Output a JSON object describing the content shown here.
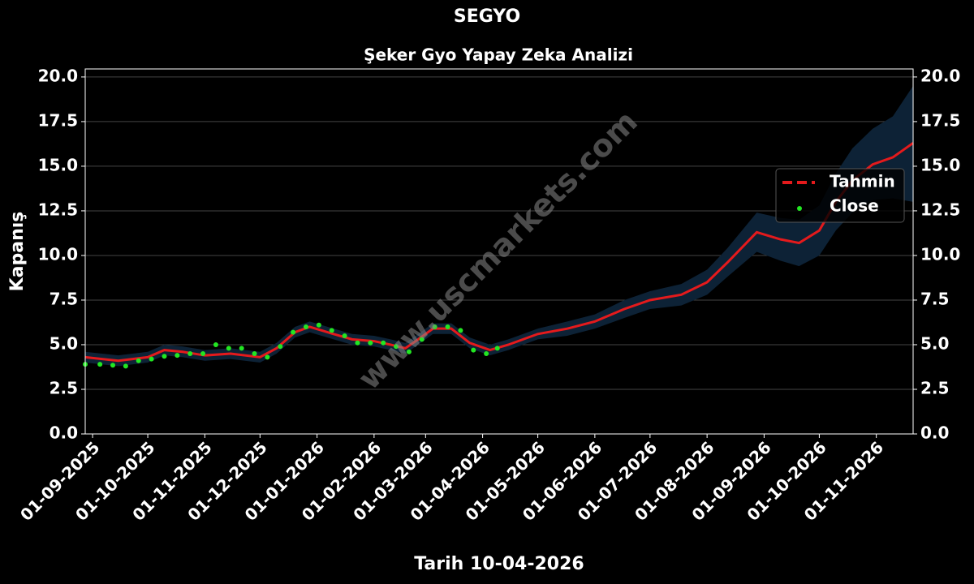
{
  "chart_data": {
    "type": "line",
    "title": "SEGYO",
    "subtitle": "Şeker Gyo Yapay Zeka Analizi",
    "y_label": "Kapanış",
    "x_label": "Tarih 10-04-2026",
    "watermark": "www.uscmarkets.com",
    "xlim": [
      "2025-08-28",
      "2026-11-21"
    ],
    "ylim": [
      0,
      20.45
    ],
    "yticks": [
      {
        "value": 0,
        "label": "0.0"
      },
      {
        "value": 2.5,
        "label": "2.5"
      },
      {
        "value": 5,
        "label": "5.0"
      },
      {
        "value": 7.5,
        "label": "7.5"
      },
      {
        "value": 10,
        "label": "10.0"
      },
      {
        "value": 12.5,
        "label": "12.5"
      },
      {
        "value": 15,
        "label": "15.0"
      },
      {
        "value": 17.5,
        "label": "17.5"
      },
      {
        "value": 20,
        "label": "20.0"
      }
    ],
    "xticks": [
      {
        "value": "2025-09-01",
        "label": "01-09-2025"
      },
      {
        "value": "2025-10-01",
        "label": "01-10-2025"
      },
      {
        "value": "2025-11-01",
        "label": "01-11-2025"
      },
      {
        "value": "2025-12-01",
        "label": "01-12-2025"
      },
      {
        "value": "2026-01-01",
        "label": "01-01-2026"
      },
      {
        "value": "2026-02-01",
        "label": "01-02-2026"
      },
      {
        "value": "2026-03-01",
        "label": "01-03-2026"
      },
      {
        "value": "2026-04-01",
        "label": "01-04-2026"
      },
      {
        "value": "2026-05-01",
        "label": "01-05-2026"
      },
      {
        "value": "2026-06-01",
        "label": "01-06-2026"
      },
      {
        "value": "2026-07-01",
        "label": "01-07-2026"
      },
      {
        "value": "2026-08-01",
        "label": "01-08-2026"
      },
      {
        "value": "2026-09-01",
        "label": "01-09-2026"
      },
      {
        "value": "2026-10-01",
        "label": "01-10-2026"
      },
      {
        "value": "2026-11-01",
        "label": "01-11-2026"
      }
    ],
    "grid": true,
    "legend": "right",
    "series": [
      {
        "name": "Tahmin",
        "color": "#e41a1c",
        "band_color": "#0d2236",
        "x": [
          "2025-08-28",
          "2025-09-15",
          "2025-10-01",
          "2025-10-10",
          "2025-10-20",
          "2025-11-01",
          "2025-11-15",
          "2025-12-01",
          "2025-12-10",
          "2025-12-20",
          "2025-12-28",
          "2026-01-10",
          "2026-01-20",
          "2026-02-01",
          "2026-02-10",
          "2026-02-18",
          "2026-02-25",
          "2026-03-05",
          "2026-03-15",
          "2026-03-25",
          "2026-04-05",
          "2026-04-15",
          "2026-05-01",
          "2026-05-17",
          "2026-06-01",
          "2026-06-17",
          "2026-07-01",
          "2026-07-18",
          "2026-08-01",
          "2026-08-12",
          "2026-08-28",
          "2026-09-10",
          "2026-09-20",
          "2026-10-01",
          "2026-10-10",
          "2026-10-19",
          "2026-10-30",
          "2026-11-10",
          "2026-11-21"
        ],
        "values": [
          4.3,
          4.1,
          4.3,
          4.7,
          4.6,
          4.4,
          4.5,
          4.3,
          4.8,
          5.7,
          6.0,
          5.6,
          5.3,
          5.2,
          5.0,
          4.8,
          5.3,
          5.9,
          5.9,
          5.1,
          4.7,
          5.0,
          5.6,
          5.9,
          6.3,
          7.0,
          7.5,
          7.8,
          8.5,
          9.6,
          11.3,
          10.9,
          10.7,
          11.4,
          13.0,
          14.2,
          15.1,
          15.5,
          16.3
        ],
        "lower": [
          4.0,
          3.8,
          4.0,
          4.4,
          4.3,
          4.1,
          4.2,
          4.0,
          4.5,
          5.4,
          5.7,
          5.3,
          5.0,
          4.9,
          4.7,
          4.5,
          5.0,
          5.6,
          5.6,
          4.8,
          4.4,
          4.7,
          5.3,
          5.5,
          5.9,
          6.5,
          7.0,
          7.2,
          7.8,
          8.8,
          10.2,
          9.7,
          9.4,
          10.0,
          11.4,
          12.4,
          13.1,
          13.2,
          13.0
        ],
        "upper": [
          4.6,
          4.4,
          4.6,
          5.0,
          4.9,
          4.7,
          4.8,
          4.6,
          5.1,
          6.0,
          6.3,
          5.9,
          5.6,
          5.5,
          5.3,
          5.1,
          5.6,
          6.2,
          6.2,
          5.4,
          5.0,
          5.3,
          5.9,
          6.3,
          6.7,
          7.5,
          8.0,
          8.4,
          9.2,
          10.4,
          12.4,
          12.1,
          12.0,
          12.8,
          14.6,
          16.0,
          17.1,
          17.8,
          19.5
        ]
      },
      {
        "name": "Close",
        "color": "#22e622",
        "x": [
          "2025-08-28",
          "2025-09-05",
          "2025-09-12",
          "2025-09-19",
          "2025-09-26",
          "2025-10-03",
          "2025-10-10",
          "2025-10-17",
          "2025-10-24",
          "2025-10-31",
          "2025-11-07",
          "2025-11-14",
          "2025-11-21",
          "2025-11-28",
          "2025-12-05",
          "2025-12-12",
          "2025-12-19",
          "2025-12-26",
          "2026-01-02",
          "2026-01-09",
          "2026-01-16",
          "2026-01-23",
          "2026-01-30",
          "2026-02-06",
          "2026-02-13",
          "2026-02-20",
          "2026-02-27",
          "2026-03-06",
          "2026-03-13",
          "2026-03-20",
          "2026-03-27",
          "2026-04-03",
          "2026-04-09"
        ],
        "values": [
          3.9,
          3.9,
          3.85,
          3.8,
          4.1,
          4.2,
          4.35,
          4.4,
          4.5,
          4.5,
          5.0,
          4.8,
          4.8,
          4.5,
          4.3,
          4.9,
          5.7,
          6.0,
          6.1,
          5.8,
          5.5,
          5.1,
          5.1,
          5.1,
          4.9,
          4.6,
          5.3,
          6.0,
          6.0,
          5.8,
          4.7,
          4.5,
          4.8
        ]
      }
    ]
  }
}
